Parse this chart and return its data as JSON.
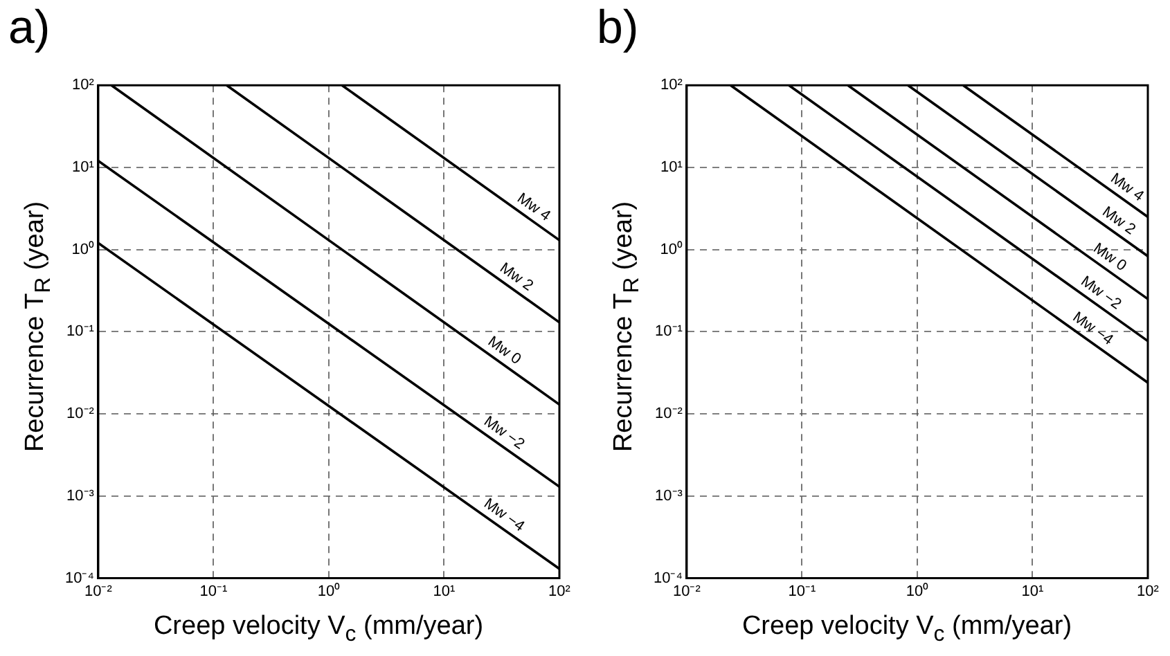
{
  "chart_data": [
    {
      "type": "line",
      "title": "a)",
      "xlabel": "Creep velocity V$_{c}$ (mm/year)",
      "ylabel": "Recurrence T$_{R}$ (year)",
      "log": "xy",
      "grid": true,
      "legend": false,
      "marker": "none",
      "line_style": "solid",
      "xlim": [
        0.01,
        100
      ],
      "ylim": [
        0.0001,
        100
      ],
      "xticks": [
        {
          "value": 0.01,
          "label": "10⁻²"
        },
        {
          "value": 0.1,
          "label": "10⁻¹"
        },
        {
          "value": 1,
          "label": "10⁰"
        },
        {
          "value": 10,
          "label": "10¹"
        },
        {
          "value": 100,
          "label": "10²"
        }
      ],
      "yticks": [
        {
          "value": 0.0001,
          "label": "10⁻⁴"
        },
        {
          "value": 0.001,
          "label": "10⁻³"
        },
        {
          "value": 0.01,
          "label": "10⁻²"
        },
        {
          "value": 0.1,
          "label": "10⁻¹"
        },
        {
          "value": 1,
          "label": "10⁰"
        },
        {
          "value": 10,
          "label": "10¹"
        },
        {
          "value": 100,
          "label": "10²"
        }
      ],
      "series": [
        {
          "name": "Mw 4",
          "color": "#000000",
          "x": [
            1.3,
            100
          ],
          "values": [
            100,
            1.3
          ]
        },
        {
          "name": "Mw 2",
          "color": "#000000",
          "x": [
            0.13,
            100
          ],
          "values": [
            100,
            0.13
          ]
        },
        {
          "name": "Mw 0",
          "color": "#000000",
          "x": [
            0.013,
            100
          ],
          "values": [
            100,
            0.013
          ]
        },
        {
          "name": "Mw −2",
          "color": "#000000",
          "x": [
            0.01,
            100
          ],
          "values": [
            12,
            0.0013
          ]
        },
        {
          "name": "Mw −4",
          "color": "#000000",
          "x": [
            0.01,
            100
          ],
          "values": [
            1.2,
            0.00013
          ]
        }
      ]
    },
    {
      "type": "line",
      "title": "b)",
      "xlabel": "Creep velocity V$_{c}$ (mm/year)",
      "ylabel": "Recurrence T$_{R}$ (year)",
      "log": "xy",
      "grid": true,
      "legend": false,
      "marker": "none",
      "line_style": "solid",
      "xlim": [
        0.01,
        100
      ],
      "ylim": [
        0.0001,
        100
      ],
      "xticks": [
        {
          "value": 0.01,
          "label": "10⁻²"
        },
        {
          "value": 0.1,
          "label": "10⁻¹"
        },
        {
          "value": 1,
          "label": "10⁰"
        },
        {
          "value": 10,
          "label": "10¹"
        },
        {
          "value": 100,
          "label": "10²"
        }
      ],
      "yticks": [
        {
          "value": 0.0001,
          "label": "10⁻⁴"
        },
        {
          "value": 0.001,
          "label": "10⁻³"
        },
        {
          "value": 0.01,
          "label": "10⁻²"
        },
        {
          "value": 0.1,
          "label": "10⁻¹"
        },
        {
          "value": 1,
          "label": "10⁰"
        },
        {
          "value": 10,
          "label": "10¹"
        },
        {
          "value": 100,
          "label": "10²"
        }
      ],
      "series": [
        {
          "name": "Mw 4",
          "color": "#000000",
          "x": [
            2.5,
            100
          ],
          "values": [
            100,
            2.5
          ]
        },
        {
          "name": "Mw 2",
          "color": "#000000",
          "x": [
            0.83,
            100
          ],
          "values": [
            100,
            0.83
          ]
        },
        {
          "name": "Mw 0",
          "color": "#000000",
          "x": [
            0.25,
            100
          ],
          "values": [
            100,
            0.25
          ]
        },
        {
          "name": "Mw −2",
          "color": "#000000",
          "x": [
            0.077,
            100
          ],
          "values": [
            100,
            0.077
          ]
        },
        {
          "name": "Mw −4",
          "color": "#000000",
          "x": [
            0.024,
            100
          ],
          "values": [
            100,
            0.024
          ]
        }
      ]
    }
  ]
}
